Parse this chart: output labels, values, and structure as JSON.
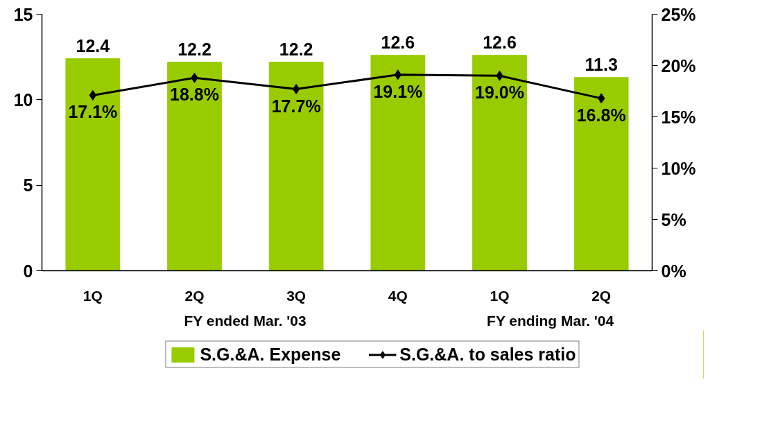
{
  "chart_data": {
    "type": "bar",
    "categories": [
      "1Q",
      "2Q",
      "3Q",
      "4Q",
      "1Q",
      "2Q"
    ],
    "series": [
      {
        "name": "S.G.&A. Expense",
        "color": "#99cc00",
        "values": [
          12.4,
          12.2,
          12.2,
          12.6,
          12.6,
          11.3
        ],
        "value_labels": [
          "12.4",
          "12.2",
          "12.2",
          "12.6",
          "12.6",
          "11.3"
        ]
      },
      {
        "name": "S.G.&A. to sales ratio",
        "type": "line",
        "axis": "y2",
        "color": "#000000",
        "marker": "diamond",
        "values": [
          17.1,
          18.8,
          17.7,
          19.1,
          19.0,
          16.8
        ],
        "value_labels": [
          "17.1%",
          "18.8%",
          "17.7%",
          "19.1%",
          "19.0%",
          "16.8%"
        ]
      }
    ],
    "ylim": [
      0,
      15
    ],
    "yticks": [
      0,
      5,
      10,
      15
    ],
    "y2lim": [
      0,
      25
    ],
    "y2ticks": [
      {
        "value": 0,
        "label": "0%"
      },
      {
        "value": 5,
        "label": "5%"
      },
      {
        "value": 10,
        "label": "10%"
      },
      {
        "value": 15,
        "label": "15%"
      },
      {
        "value": 20,
        "label": "20%"
      },
      {
        "value": 25,
        "label": "25%"
      }
    ],
    "annotations": [
      "FY ended Mar. '03",
      "FY ending Mar. '04"
    ],
    "grid": false,
    "legend": "bottom"
  }
}
